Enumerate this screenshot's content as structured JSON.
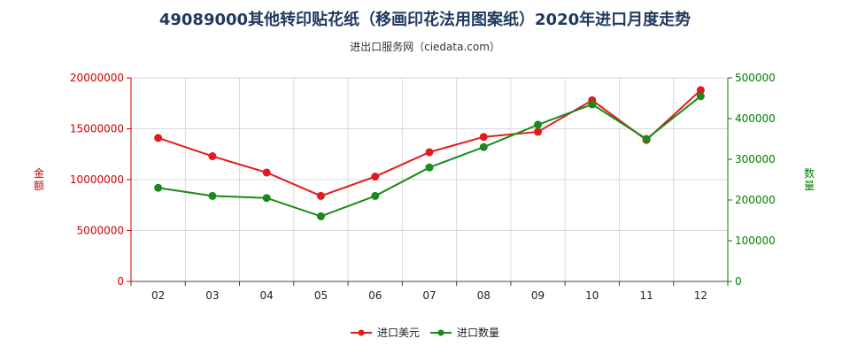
{
  "title": "49089000其他转印贴花纸（移画印花法用图案纸）2020年进口月度走势",
  "subtitle": "进出口服务网（ciedata.com）",
  "chart_data": {
    "type": "line",
    "categories": [
      "02",
      "03",
      "04",
      "05",
      "06",
      "07",
      "08",
      "09",
      "10",
      "11",
      "12"
    ],
    "series": [
      {
        "name": "进口美元",
        "axis": "left",
        "color": "#e31a1c",
        "values": [
          14100000,
          12300000,
          10700000,
          8400000,
          10300000,
          12700000,
          14200000,
          14700000,
          17800000,
          13900000,
          18800000
        ]
      },
      {
        "name": "进口数量",
        "axis": "right",
        "color": "#1a8a1a",
        "values": [
          230000,
          210000,
          205000,
          160000,
          210000,
          280000,
          330000,
          385000,
          435000,
          350000,
          455000
        ]
      }
    ],
    "ylabel": "金额",
    "ylabel_right": "数量",
    "ylim": [
      0,
      20000000
    ],
    "ylim_right": [
      0,
      500000
    ],
    "yticks": [
      "0",
      "5000000",
      "10000000",
      "15000000",
      "20000000"
    ],
    "yticks_right": [
      "0",
      "100000",
      "200000",
      "300000",
      "400000",
      "500000"
    ],
    "grid": true,
    "legend_position": "bottom"
  }
}
